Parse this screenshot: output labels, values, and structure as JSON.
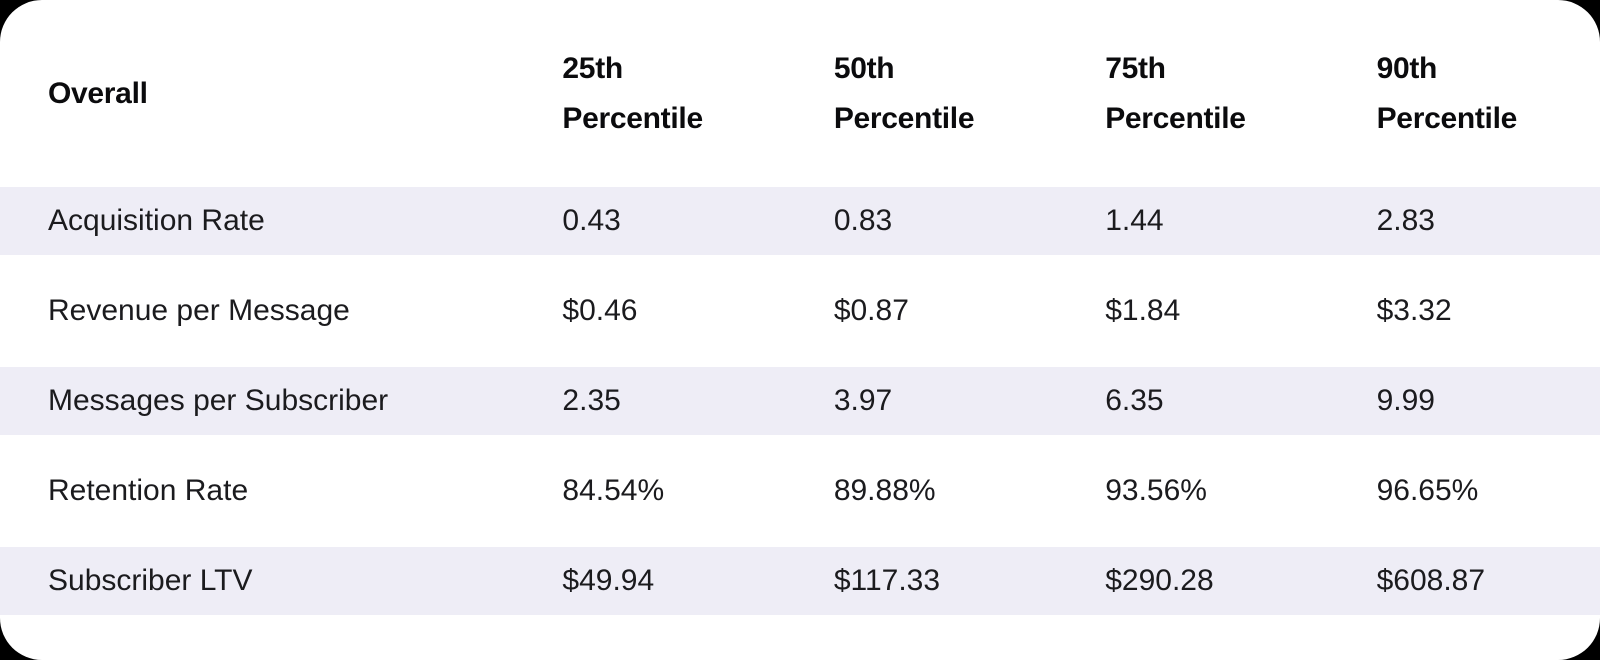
{
  "theme": {
    "page_background": "#000000",
    "card_background": "#ffffff",
    "stripe_color": "#eeedf6",
    "header_text_color": "#0b0b0d",
    "body_text_color": "#1b1b1e"
  },
  "table": {
    "first_column_header": "Overall",
    "column_headers": [
      "25th Percentile",
      "50th Percentile",
      "75th Percentile",
      "90th Percentile"
    ],
    "rows": [
      {
        "label": "Acquisition Rate",
        "values": [
          "0.43",
          "0.83",
          "1.44",
          "2.83"
        ]
      },
      {
        "label": "Revenue per Message",
        "values": [
          "$0.46",
          "$0.87",
          "$1.84",
          "$3.32"
        ]
      },
      {
        "label": "Messages per Subscriber",
        "values": [
          "2.35",
          "3.97",
          "6.35",
          "9.99"
        ]
      },
      {
        "label": "Retention Rate",
        "values": [
          "84.54%",
          "89.88%",
          "93.56%",
          "96.65%"
        ]
      },
      {
        "label": "Subscriber LTV",
        "values": [
          "$49.94",
          "$117.33",
          "$290.28",
          "$608.87"
        ]
      }
    ]
  },
  "chart_data": {
    "type": "table",
    "title": "Overall",
    "columns": [
      "Overall",
      "25th Percentile",
      "50th Percentile",
      "75th Percentile",
      "90th Percentile"
    ],
    "rows": [
      [
        "Acquisition Rate",
        "0.43",
        "0.83",
        "1.44",
        "2.83"
      ],
      [
        "Revenue per Message",
        "$0.46",
        "$0.87",
        "$1.84",
        "$3.32"
      ],
      [
        "Messages per Subscriber",
        "2.35",
        "3.97",
        "6.35",
        "9.99"
      ],
      [
        "Retention Rate",
        "84.54%",
        "89.88%",
        "93.56%",
        "96.65%"
      ],
      [
        "Subscriber LTV",
        "$49.94",
        "$117.33",
        "$290.28",
        "$608.87"
      ]
    ]
  }
}
